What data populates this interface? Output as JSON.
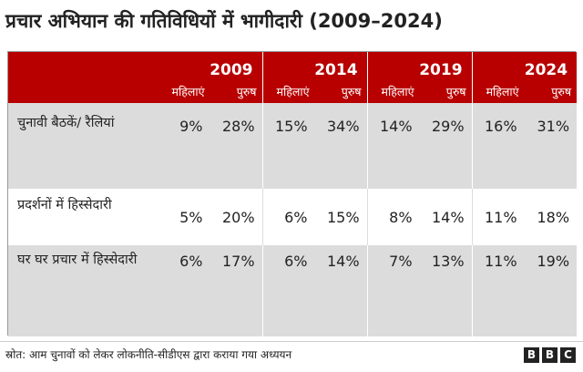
{
  "title": "प्रचार अभियान की गतिविधियों में भागीदारी (2009–2024)",
  "columns": {
    "years": [
      "2009",
      "2014",
      "2019",
      "2024"
    ],
    "women": "महिलाएं",
    "men": "पुरुष"
  },
  "rows": [
    {
      "label": "चुनावी बैठकें/ रैलियां",
      "values": [
        "9%",
        "28%",
        "15%",
        "34%",
        "14%",
        "29%",
        "16%",
        "31%"
      ]
    },
    {
      "label": "प्रदर्शनों में हिस्सेदारी",
      "values": [
        "5%",
        "20%",
        "6%",
        "15%",
        "8%",
        "14%",
        "11%",
        "18%"
      ]
    },
    {
      "label": "घर घर प्रचार में हिस्सेदारी",
      "values": [
        "6%",
        "17%",
        "6%",
        "14%",
        "7%",
        "13%",
        "11%",
        "19%"
      ]
    }
  ],
  "source": "स्रोत: आम चुनावों को लेकर लोकनीति-सीडीएस द्वारा कराया गया अध्ययन",
  "logo": [
    "B",
    "B",
    "C"
  ]
}
